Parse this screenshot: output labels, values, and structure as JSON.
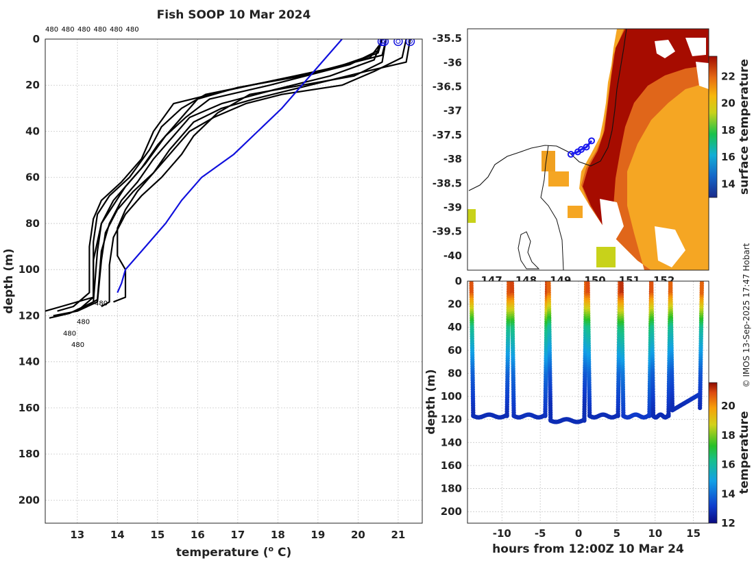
{
  "chart_data": [
    {
      "type": "line",
      "title": "Fish SOOP 10 Mar 2024",
      "xlabel": "temperature (",
      "xlabel_sup": "o",
      "xlabel_unit": " C)",
      "ylabel": "depth (m)",
      "xlim": [
        12.2,
        21.6
      ],
      "ylim": [
        0,
        210
      ],
      "xticks": [
        13,
        14,
        15,
        16,
        17,
        18,
        19,
        20,
        21
      ],
      "yticks": [
        0,
        20,
        40,
        60,
        80,
        100,
        120,
        140,
        160,
        180,
        200
      ],
      "top_labels": [
        "480",
        "480",
        "480",
        "480",
        "480",
        "480"
      ],
      "bottom_labels": [
        "480",
        "480",
        "480",
        "480"
      ],
      "climatology": {
        "name": "climatology",
        "color": "#1010dd",
        "points": [
          [
            19.6,
            0
          ],
          [
            19.1,
            10
          ],
          [
            18.6,
            20
          ],
          [
            18.1,
            30
          ],
          [
            17.5,
            40
          ],
          [
            16.9,
            50
          ],
          [
            16.1,
            60
          ],
          [
            15.6,
            70
          ],
          [
            15.2,
            80
          ],
          [
            14.7,
            90
          ],
          [
            14.2,
            100
          ],
          [
            14.1,
            106
          ],
          [
            14.0,
            110
          ]
        ]
      },
      "series": [
        {
          "name": "profile 1",
          "points": [
            [
              20.6,
              0
            ],
            [
              20.5,
              6
            ],
            [
              19.5,
              12
            ],
            [
              16.8,
              22
            ],
            [
              15.4,
              28
            ],
            [
              14.9,
              40
            ],
            [
              14.6,
              52
            ],
            [
              14.1,
              62
            ],
            [
              13.6,
              70
            ],
            [
              13.4,
              78
            ],
            [
              13.3,
              90
            ],
            [
              13.3,
              110
            ],
            [
              12.9,
              116
            ],
            [
              12.5,
              118
            ]
          ]
        },
        {
          "name": "profile 2",
          "points": [
            [
              20.7,
              0
            ],
            [
              20.6,
              7
            ],
            [
              19.0,
              14
            ],
            [
              16.2,
              24
            ],
            [
              15.6,
              30
            ],
            [
              15.1,
              38
            ],
            [
              14.8,
              48
            ],
            [
              14.3,
              60
            ],
            [
              13.8,
              68
            ],
            [
              13.5,
              76
            ],
            [
              13.4,
              88
            ],
            [
              13.4,
              112
            ],
            [
              13.0,
              118
            ],
            [
              12.4,
              120
            ]
          ]
        },
        {
          "name": "profile 3",
          "points": [
            [
              20.6,
              1
            ],
            [
              20.3,
              8
            ],
            [
              18.6,
              16
            ],
            [
              17.0,
              21
            ],
            [
              16.0,
              26
            ],
            [
              15.5,
              36
            ],
            [
              15.0,
              46
            ],
            [
              14.6,
              56
            ],
            [
              14.2,
              64
            ],
            [
              13.9,
              72
            ],
            [
              13.6,
              80
            ],
            [
              13.5,
              92
            ],
            [
              13.4,
              114
            ],
            [
              12.8,
              119
            ],
            [
              12.3,
              121
            ]
          ]
        },
        {
          "name": "profile 4",
          "points": [
            [
              21.3,
              0
            ],
            [
              21.2,
              10
            ],
            [
              20.2,
              14
            ],
            [
              18.8,
              20
            ],
            [
              17.4,
              26
            ],
            [
              16.6,
              30
            ],
            [
              15.9,
              36
            ],
            [
              15.3,
              48
            ],
            [
              14.9,
              58
            ],
            [
              14.4,
              66
            ],
            [
              14.0,
              74
            ],
            [
              13.7,
              84
            ],
            [
              13.6,
              96
            ],
            [
              13.5,
              114
            ],
            [
              13.0,
              118
            ]
          ]
        },
        {
          "name": "profile 5",
          "points": [
            [
              20.6,
              0
            ],
            [
              20.4,
              9
            ],
            [
              19.3,
              16
            ],
            [
              17.9,
              22
            ],
            [
              16.6,
              28
            ],
            [
              15.8,
              34
            ],
            [
              15.3,
              44
            ],
            [
              14.9,
              52
            ],
            [
              14.5,
              62
            ],
            [
              14.1,
              70
            ],
            [
              13.8,
              80
            ],
            [
              13.6,
              92
            ],
            [
              13.5,
              113
            ],
            [
              13.1,
              117
            ]
          ]
        },
        {
          "name": "profile 6",
          "points": [
            [
              21.2,
              0
            ],
            [
              21.1,
              8
            ],
            [
              20.4,
              14
            ],
            [
              19.6,
              20
            ],
            [
              18.1,
              24
            ],
            [
              17.2,
              28
            ],
            [
              16.4,
              34
            ],
            [
              15.8,
              40
            ],
            [
              15.3,
              50
            ],
            [
              14.9,
              58
            ],
            [
              14.5,
              66
            ],
            [
              14.2,
              74
            ],
            [
              14.0,
              82
            ],
            [
              14.0,
              94
            ],
            [
              14.2,
              100
            ],
            [
              14.2,
              112
            ],
            [
              13.9,
              114
            ]
          ]
        },
        {
          "name": "profile 7",
          "points": [
            [
              20.7,
              0
            ],
            [
              20.6,
              10
            ],
            [
              19.9,
              16
            ],
            [
              18.6,
              20
            ],
            [
              17.3,
              24
            ],
            [
              16.5,
              32
            ],
            [
              15.9,
              42
            ],
            [
              15.6,
              50
            ],
            [
              15.1,
              60
            ],
            [
              14.6,
              68
            ],
            [
              14.2,
              76
            ],
            [
              13.9,
              86
            ],
            [
              13.8,
              98
            ],
            [
              13.8,
              114
            ],
            [
              13.6,
              116
            ]
          ]
        },
        {
          "name": "profile 8",
          "points": [
            [
              20.6,
              0
            ],
            [
              20.5,
              5
            ],
            [
              19.8,
              11
            ],
            [
              17.8,
              20
            ],
            [
              16.3,
              26
            ],
            [
              15.7,
              34
            ],
            [
              15.2,
              42
            ],
            [
              14.7,
              54
            ],
            [
              14.3,
              62
            ],
            [
              13.9,
              70
            ],
            [
              13.6,
              80
            ],
            [
              13.4,
              96
            ],
            [
              13.4,
              112
            ],
            [
              12.6,
              116
            ],
            [
              12.2,
              118
            ]
          ]
        }
      ],
      "circle_temps": [
        20.6,
        20.65,
        21.0,
        21.3
      ]
    },
    {
      "type": "heatmap",
      "title": "",
      "xlabel": "",
      "ylabel": "",
      "xlim": [
        146.3,
        153.3
      ],
      "ylim": [
        -40.3,
        -35.3
      ],
      "xticks": [
        147,
        148,
        149,
        150,
        151,
        152
      ],
      "xtick_labels": [
        "147",
        "148",
        "149",
        "150",
        "151",
        "152"
      ],
      "yticks": [
        -35.5,
        -36,
        -36.5,
        -37,
        -37.5,
        -38,
        -38.5,
        -39,
        -39.5,
        -40
      ],
      "ytick_labels": [
        "-35.5",
        "-36",
        "-36.5",
        "-37",
        "-37.5",
        "-38",
        "-38.5",
        "-39",
        "-39.5",
        "-40"
      ],
      "colorbar_label": "surface temperature",
      "colorbar_range": [
        13,
        23.5
      ],
      "colorbar_ticks": [
        14,
        16,
        18,
        20,
        22
      ],
      "colorbar_tick_labels": [
        "14",
        "16",
        "18",
        "20",
        "22"
      ],
      "track": [
        [
          149.3,
          -37.9
        ],
        [
          149.5,
          -37.85
        ],
        [
          149.6,
          -37.8
        ],
        [
          149.75,
          -37.75
        ],
        [
          149.9,
          -37.62
        ]
      ]
    },
    {
      "type": "scatter",
      "title": "",
      "xlabel": "hours from 12:00Z 10 Mar 24",
      "ylabel": "depth (m)",
      "xlim": [
        -14.5,
        17
      ],
      "ylim": [
        0,
        210
      ],
      "xticks": [
        -10,
        -5,
        0,
        5,
        10,
        15
      ],
      "xtick_labels": [
        "-10",
        "-5",
        "0",
        "5",
        "10",
        "15"
      ],
      "yticks": [
        0,
        20,
        40,
        60,
        80,
        100,
        120,
        140,
        160,
        180,
        200
      ],
      "ytick_labels": [
        "0",
        "20",
        "40",
        "60",
        "80",
        "100",
        "120",
        "140",
        "160",
        "180",
        "200"
      ],
      "colorbar_label": "temperature",
      "colorbar_range": [
        12,
        21.6
      ],
      "colorbar_ticks": [
        12,
        14,
        16,
        18,
        20
      ],
      "colorbar_tick_labels": [
        "12",
        "14",
        "16",
        "18",
        "20"
      ],
      "dives": [
        {
          "start": -14,
          "end": -9.1,
          "temp_surface": 20.8
        },
        {
          "start": -8.7,
          "end": -4.1,
          "temp_surface": 21.0
        },
        {
          "start": -3.9,
          "end": 1.0,
          "temp_surface": 20.6
        },
        {
          "start": 1.2,
          "end": 5.4,
          "temp_surface": 20.9
        },
        {
          "start": 5.6,
          "end": 9.5,
          "temp_surface": 21.2
        },
        {
          "start": 9.5,
          "end": 12.0,
          "temp_surface": 20.8
        },
        {
          "start": 12.0,
          "end": 16.1,
          "temp_surface": 20.6
        }
      ]
    }
  ],
  "credit": "© IMOS 13-Sep-2025 17:47 Hobart"
}
